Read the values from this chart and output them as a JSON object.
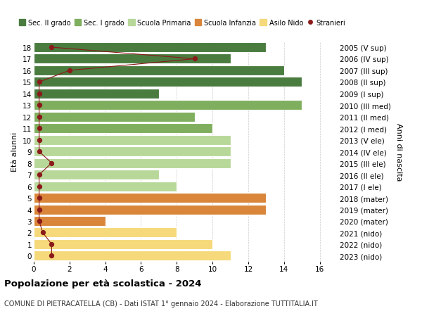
{
  "ages": [
    18,
    17,
    16,
    15,
    14,
    13,
    12,
    11,
    10,
    9,
    8,
    7,
    6,
    5,
    4,
    3,
    2,
    1,
    0
  ],
  "right_labels": [
    "2005 (V sup)",
    "2006 (IV sup)",
    "2007 (III sup)",
    "2008 (II sup)",
    "2009 (I sup)",
    "2010 (III med)",
    "2011 (II med)",
    "2012 (I med)",
    "2013 (V ele)",
    "2014 (IV ele)",
    "2015 (III ele)",
    "2016 (II ele)",
    "2017 (I ele)",
    "2018 (mater)",
    "2019 (mater)",
    "2020 (mater)",
    "2021 (nido)",
    "2022 (nido)",
    "2023 (nido)"
  ],
  "bar_values": [
    13,
    11,
    14,
    15,
    7,
    15,
    9,
    10,
    11,
    11,
    11,
    7,
    8,
    13,
    13,
    4,
    8,
    10,
    11
  ],
  "bar_colors": [
    "#4a7c3f",
    "#4a7c3f",
    "#4a7c3f",
    "#4a7c3f",
    "#4a7c3f",
    "#7faf5e",
    "#7faf5e",
    "#7faf5e",
    "#b8d89a",
    "#b8d89a",
    "#b8d89a",
    "#b8d89a",
    "#b8d89a",
    "#d9853a",
    "#d9853a",
    "#d9853a",
    "#f5d97a",
    "#f5d97a",
    "#f5d97a"
  ],
  "stranieri_x": [
    1,
    9,
    2,
    0.3,
    0.3,
    0.3,
    0.3,
    0.3,
    0.3,
    0.3,
    1,
    0.3,
    0.3,
    0.3,
    0.3,
    0.3,
    0.5,
    1,
    1
  ],
  "stranieri_color": "#8b1a1a",
  "title": "Popolazione per età scolastica - 2024",
  "subtitle": "COMUNE DI PIETRACATELLA (CB) - Dati ISTAT 1° gennaio 2024 - Elaborazione TUTTITALIA.IT",
  "ylabel": "Età alunni",
  "ylabel_right": "Anni di nascita",
  "xlabel_vals": [
    0,
    2,
    4,
    6,
    8,
    10,
    12,
    14,
    16
  ],
  "xlim": [
    0,
    17
  ],
  "ylim": [
    -0.5,
    18.5
  ],
  "legend_labels": [
    "Sec. II grado",
    "Sec. I grado",
    "Scuola Primaria",
    "Scuola Infanzia",
    "Asilo Nido",
    "Stranieri"
  ],
  "legend_colors": [
    "#4a7c3f",
    "#7faf5e",
    "#b8d89a",
    "#d9853a",
    "#f5d97a",
    "#8b1a1a"
  ],
  "background_color": "#ffffff",
  "grid_color": "#cccccc"
}
